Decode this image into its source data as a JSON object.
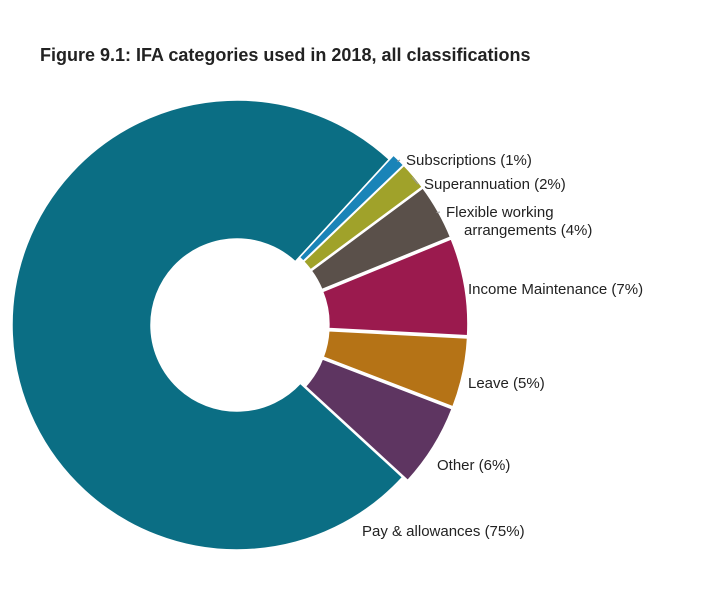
{
  "chart_data": {
    "type": "pie",
    "title": "Figure 9.1: IFA categories used in 2018, all classifications",
    "donut": true,
    "slices": [
      {
        "label": "Pay & allowances (75%)",
        "value": 75,
        "color": "#0b6e84"
      },
      {
        "label": "Subscriptions (1%)",
        "value": 1,
        "color": "#1a84b8"
      },
      {
        "label": "Superannuation (2%)",
        "value": 2,
        "color": "#a0a22a"
      },
      {
        "label_lines": [
          "Flexible working",
          "arrangements (4%)"
        ],
        "value": 4,
        "color": "#5a504a"
      },
      {
        "label": "Income Maintenance (7%)",
        "value": 7,
        "color": "#9b1a4e"
      },
      {
        "label": "Leave (5%)",
        "value": 5,
        "color": "#b57316"
      },
      {
        "label": "Other (6%)",
        "value": 6,
        "color": "#5e3561"
      }
    ]
  }
}
